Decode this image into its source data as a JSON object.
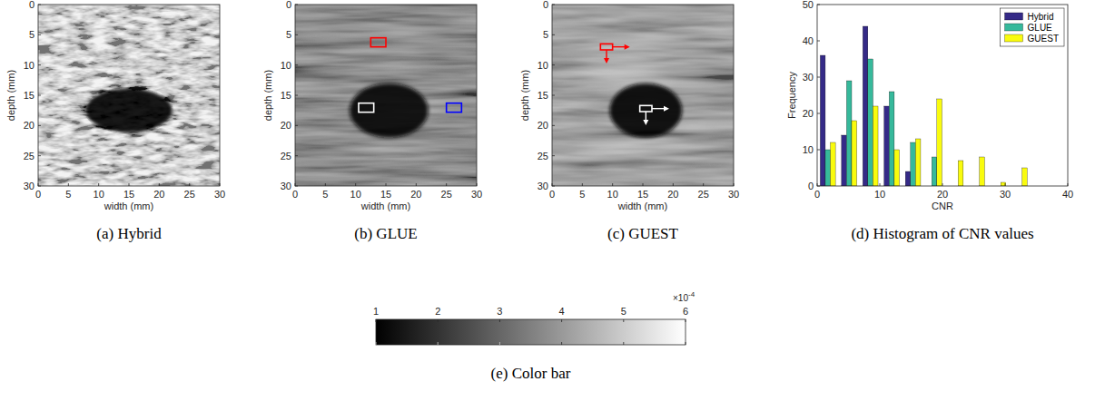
{
  "chart_data": [
    {
      "type": "image",
      "caption": "(a) Hybrid",
      "xlabel": "width (mm)",
      "ylabel": "depth (mm)",
      "xlim": [
        0,
        30
      ],
      "ylim": [
        30,
        0
      ],
      "xticks": [
        0,
        5,
        10,
        15,
        20,
        25,
        30
      ],
      "yticks": [
        0,
        5,
        10,
        15,
        20,
        25,
        30
      ],
      "background": 0.00045,
      "inclusion": {
        "x": 15,
        "y": 17.5,
        "width": 14.5,
        "height": 7.5,
        "value": 0.00012
      }
    },
    {
      "type": "image",
      "caption": "(b) GLUE",
      "xlabel": "width (mm)",
      "ylabel": "depth (mm)",
      "xlim": [
        0,
        30
      ],
      "ylim": [
        30,
        0
      ],
      "xticks": [
        0,
        5,
        10,
        15,
        20,
        25,
        30
      ],
      "yticks": [
        0,
        5,
        10,
        15,
        20,
        25,
        30
      ],
      "background": 0.00032,
      "inclusion": {
        "x": 15.5,
        "y": 17.5,
        "width": 13,
        "height": 9,
        "value": 0.00013
      },
      "rois": [
        {
          "x": [
            12.5,
            15
          ],
          "y": [
            5.5,
            7
          ],
          "color": "#ff0000"
        },
        {
          "x": [
            10.5,
            13
          ],
          "y": [
            16.3,
            17.8
          ],
          "color": "#ffffff"
        },
        {
          "x": [
            25,
            27.5
          ],
          "y": [
            16.3,
            17.8
          ],
          "color": "#0000ff"
        }
      ]
    },
    {
      "type": "image",
      "caption": "(c) GUEST",
      "xlabel": "width (mm)",
      "ylabel": "depth (mm)",
      "xlim": [
        0,
        30
      ],
      "ylim": [
        30,
        0
      ],
      "xticks": [
        0,
        5,
        10,
        15,
        20,
        25,
        30
      ],
      "yticks": [
        0,
        5,
        10,
        15,
        20,
        25,
        30
      ],
      "background": 0.00036,
      "inclusion": {
        "x": 15.5,
        "y": 17.5,
        "width": 12,
        "height": 9,
        "value": 0.00012
      },
      "rois": [
        {
          "x": [
            8,
            10
          ],
          "y": [
            6.5,
            7.5
          ],
          "color": "#ff0000",
          "marker": "arrow"
        },
        {
          "x": [
            14.5,
            16.5
          ],
          "y": [
            16.7,
            17.7
          ],
          "color": "#ffffff",
          "marker": "arrow"
        }
      ]
    },
    {
      "type": "histogram",
      "caption": "(d) Histogram of CNR values",
      "xlabel": "CNR",
      "ylabel": "Frequency",
      "bins": [
        0,
        3.4,
        6.8,
        10.2,
        13.6,
        17,
        20.4,
        23.8,
        27.2,
        30.6,
        34
      ],
      "xlim": [
        0,
        40
      ],
      "xticks": [
        0,
        10,
        20,
        30,
        40
      ],
      "ylim": [
        0,
        50
      ],
      "yticks": [
        0,
        10,
        20,
        30,
        40,
        50
      ],
      "legend": "top right",
      "series": [
        {
          "name": "Hybrid",
          "color": "#352a87",
          "values": [
            36,
            14,
            44,
            22,
            4,
            0,
            0,
            0,
            0,
            0
          ]
        },
        {
          "name": "GLUE",
          "color": "#36b99b",
          "values": [
            10,
            29,
            35,
            26,
            12,
            8,
            0,
            0,
            0,
            0
          ]
        },
        {
          "name": "GUEST",
          "color": "#f9fb0e",
          "values": [
            12,
            18,
            22,
            10,
            13,
            24,
            7,
            8,
            1,
            5
          ]
        }
      ]
    },
    {
      "type": "colorbar",
      "caption": "(e) Color bar",
      "clim": [
        0.0001,
        0.0006
      ],
      "ticks": [
        {
          "value": 0.0001,
          "label": "1"
        },
        {
          "value": 0.0002,
          "label": "2"
        },
        {
          "value": 0.0003,
          "label": "3"
        },
        {
          "value": 0.0004,
          "label": "4"
        },
        {
          "value": 0.0005,
          "label": "5"
        },
        {
          "value": 0.0006,
          "label": "6"
        }
      ],
      "multiplier": {
        "base": "×10",
        "exponent": "-4"
      }
    }
  ]
}
